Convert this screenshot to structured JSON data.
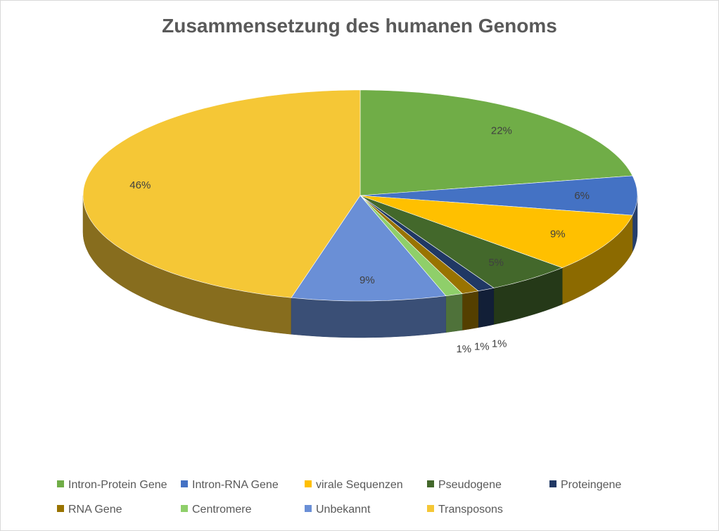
{
  "chart_data": {
    "type": "pie",
    "title": "Zusammensetzung des humanen Genoms",
    "slices": [
      {
        "label": "Intron-Protein Gene",
        "value": 22,
        "display": "22%",
        "color": "#70ad47"
      },
      {
        "label": "Intron-RNA Gene",
        "value": 6,
        "display": "6%",
        "color": "#4472c4"
      },
      {
        "label": "virale Sequenzen",
        "value": 9,
        "display": "9%",
        "color": "#ffc000"
      },
      {
        "label": "Pseudogene",
        "value": 5,
        "display": "5%",
        "color": "#43682b"
      },
      {
        "label": "Proteingene",
        "value": 1,
        "display": "1%",
        "color": "#203864"
      },
      {
        "label": "RNA Gene",
        "value": 1,
        "display": "1%",
        "color": "#997300"
      },
      {
        "label": "Centromere",
        "value": 1,
        "display": "1%",
        "color": "#8fcf6a"
      },
      {
        "label": "Unbekannt",
        "value": 9,
        "display": "9%",
        "color": "#6a8fd6"
      },
      {
        "label": "Transposons",
        "value": 46,
        "display": "46%",
        "color": "#f5c736"
      }
    ],
    "legend_position": "bottom",
    "style": "3d-pie"
  }
}
